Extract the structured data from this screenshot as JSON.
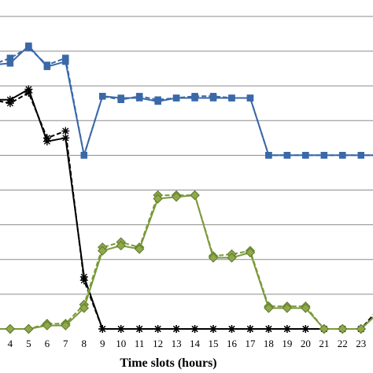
{
  "chart_data": {
    "type": "line",
    "title": "",
    "xlabel": "Time slots (hours)",
    "ylabel": "",
    "grid": true,
    "x": [
      3,
      4,
      5,
      6,
      7,
      8,
      9,
      10,
      11,
      12,
      13,
      14,
      15,
      16,
      17,
      18,
      19,
      20,
      21,
      22,
      23,
      24
    ],
    "x_tick_labels": [
      "4",
      "5",
      "6",
      "7",
      "8",
      "9",
      "10",
      "11",
      "12",
      "13",
      "14",
      "15",
      "16",
      "17",
      "18",
      "19",
      "20",
      "21",
      "22",
      "23"
    ],
    "series": [
      {
        "marker": "square",
        "color": "#3a68a8",
        "style": "dashed",
        "values": [
          0.76,
          0.78,
          0.81,
          0.76,
          0.78,
          0.5,
          0.67,
          0.66,
          0.67,
          0.66,
          0.665,
          0.67,
          0.67,
          0.665,
          0.665,
          0.5,
          0.5,
          0.5,
          0.5,
          0.5,
          0.5,
          0.5
        ]
      },
      {
        "marker": "square",
        "color": "#3a68a8",
        "style": "solid",
        "values": [
          0.76,
          0.765,
          0.815,
          0.755,
          0.77,
          0.5,
          0.67,
          0.665,
          0.665,
          0.655,
          0.665,
          0.665,
          0.665,
          0.665,
          0.665,
          0.5,
          0.5,
          0.5,
          0.5,
          0.5,
          0.5,
          0.5
        ]
      },
      {
        "marker": "star",
        "color": "#000000",
        "style": "dashed",
        "values": [
          0.66,
          0.65,
          0.68,
          0.55,
          0.57,
          0.14,
          0.0,
          0.0,
          0.0,
          0.0,
          0.0,
          0.0,
          0.0,
          0.0,
          0.0,
          0.0,
          0.0,
          0.0,
          0.0,
          0.0,
          0.0,
          0.06
        ]
      },
      {
        "marker": "star",
        "color": "#000000",
        "style": "solid",
        "values": [
          0.66,
          0.66,
          0.69,
          0.54,
          0.55,
          0.15,
          0.0,
          0.0,
          0.0,
          0.0,
          0.0,
          0.0,
          0.0,
          0.0,
          0.0,
          0.0,
          0.0,
          0.0,
          0.0,
          0.0,
          0.0,
          0.05
        ]
      },
      {
        "marker": "diamond",
        "color": "#7a9a3a",
        "style": "dashed",
        "values": [
          0.0,
          0.0,
          0.0,
          0.015,
          0.015,
          0.07,
          0.235,
          0.25,
          0.235,
          0.385,
          0.385,
          0.385,
          0.21,
          0.215,
          0.225,
          0.065,
          0.065,
          0.065,
          0.0,
          0.0,
          0.0,
          0.05
        ]
      },
      {
        "marker": "diamond",
        "color": "#7a9a3a",
        "style": "solid",
        "values": [
          0.0,
          0.0,
          0.0,
          0.01,
          0.01,
          0.06,
          0.225,
          0.24,
          0.23,
          0.375,
          0.38,
          0.385,
          0.205,
          0.205,
          0.22,
          0.06,
          0.06,
          0.06,
          0.0,
          0.0,
          0.0,
          0.05
        ]
      }
    ],
    "xlim": [
      3.45,
      23.65
    ],
    "ylim": [
      0,
      0.92
    ],
    "gridlines": [
      0.1,
      0.2,
      0.3,
      0.4,
      0.5,
      0.6,
      0.7,
      0.8,
      0.9
    ],
    "legend": "none"
  }
}
